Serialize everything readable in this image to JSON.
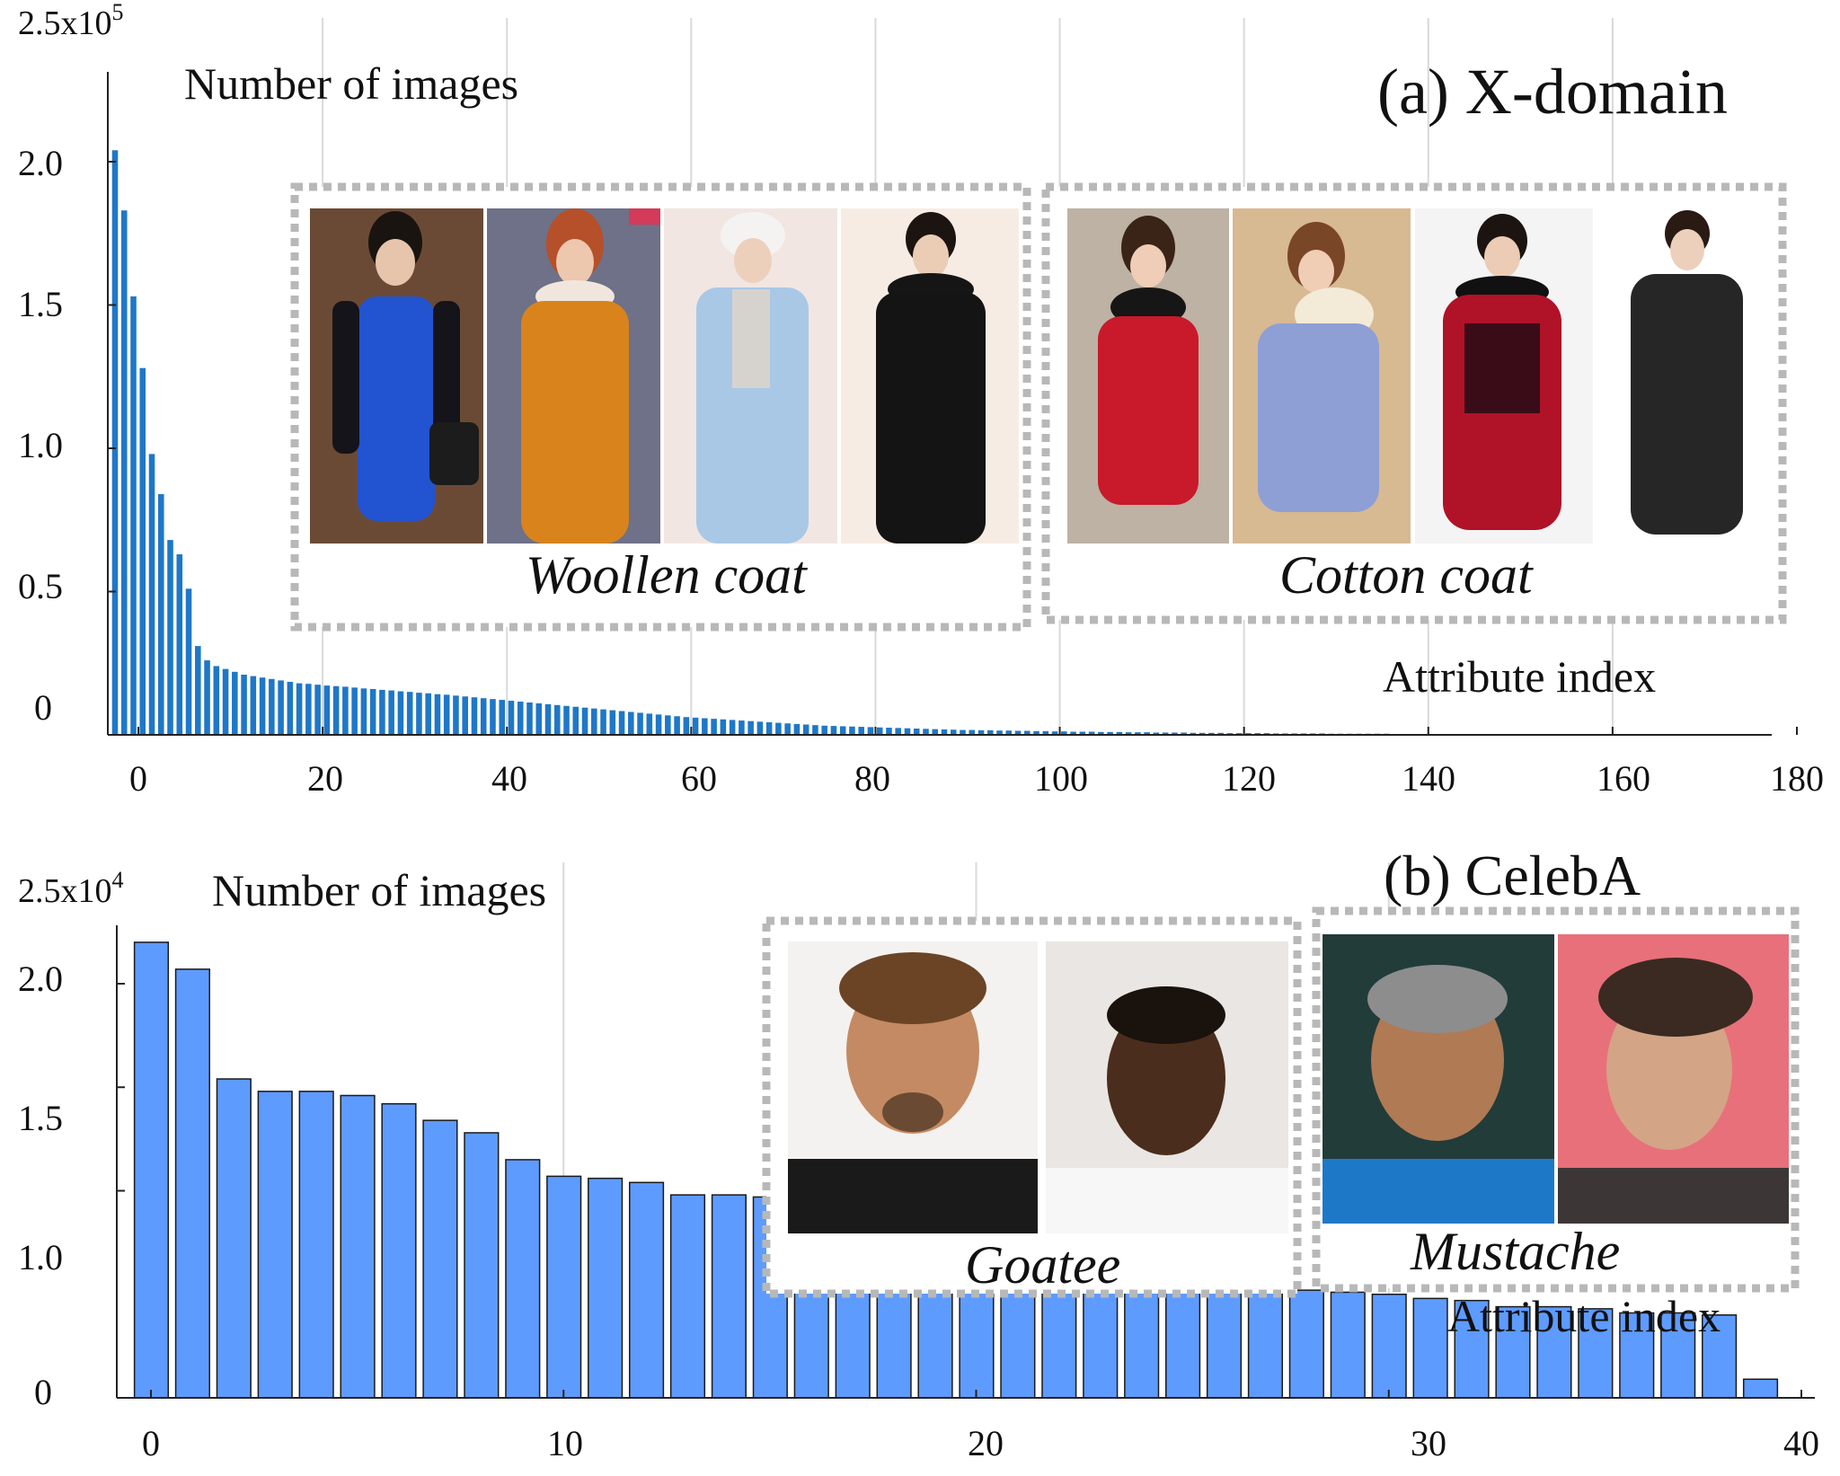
{
  "panels": [
    {
      "panel_title": "(a) X-domain",
      "y_axis_title": "Number of images",
      "x_axis_title": "Attribute index",
      "y_scale_prefix": "2.5x10",
      "y_scale_exp": "5",
      "y_tick_labels": [
        "2.0",
        "1.5",
        "1.0",
        "0.5",
        "0"
      ],
      "x_tick_labels": [
        "0",
        "20",
        "40",
        "60",
        "80",
        "100",
        "120",
        "140",
        "160",
        "180"
      ],
      "groups": [
        {
          "label": "Woollen coat",
          "thumbnails": [
            "blue-dress-photo",
            "orange-coat-photo",
            "light-blue-coat-photo",
            "black-coat-photo"
          ]
        },
        {
          "label": "Cotton coat",
          "thumbnails": [
            "red-padded-coat-photo",
            "lavender-coat-photo",
            "red-black-coat-photo",
            "black-padded-coat-photo"
          ]
        }
      ]
    },
    {
      "panel_title": "(b) CelebA",
      "y_axis_title": "Number of images",
      "x_axis_title": "Attribute index",
      "y_scale_prefix": "2.5x10",
      "y_scale_exp": "4",
      "y_tick_labels": [
        "2.0",
        "1.5",
        "1.0",
        "0"
      ],
      "x_tick_labels": [
        "0",
        "10",
        "20",
        "30",
        "40"
      ],
      "groups": [
        {
          "label": "Goatee",
          "thumbnails": [
            "goatee-face-photo-1",
            "goatee-face-photo-2"
          ]
        },
        {
          "label": "Mustache",
          "thumbnails": [
            "mustache-face-photo-1",
            "mustache-face-photo-2"
          ]
        }
      ]
    }
  ],
  "colors": {
    "bar_a": "#1f77c8",
    "bar_b": "#5e9bff",
    "bar_stroke_b": "#1a1a1a",
    "axis": "#222222",
    "grid": "#d9d9d9",
    "dash_frame": "#b8b8b8"
  },
  "chart_data": [
    {
      "type": "bar",
      "title": "(a) X-domain",
      "xlabel": "Attribute index",
      "ylabel": "Number of images",
      "unit_multiplier": 100000,
      "xlim": [
        -3,
        180
      ],
      "ylim": [
        0,
        2.5
      ],
      "grid": true,
      "x_ticks": [
        0,
        20,
        40,
        60,
        80,
        100,
        120,
        140,
        160,
        180
      ],
      "y_ticks": [
        0,
        0.5,
        1.0,
        1.5,
        2.0
      ],
      "values": [
        2.04,
        1.83,
        1.53,
        1.28,
        0.98,
        0.84,
        0.68,
        0.63,
        0.51,
        0.31,
        0.26,
        0.24,
        0.23,
        0.22,
        0.21,
        0.205,
        0.2,
        0.195,
        0.19,
        0.185,
        0.18,
        0.178,
        0.175,
        0.172,
        0.17,
        0.168,
        0.165,
        0.162,
        0.16,
        0.157,
        0.155,
        0.152,
        0.15,
        0.147,
        0.145,
        0.142,
        0.14,
        0.137,
        0.134,
        0.131,
        0.128,
        0.125,
        0.122,
        0.119,
        0.116,
        0.113,
        0.11,
        0.107,
        0.104,
        0.101,
        0.098,
        0.095,
        0.092,
        0.089,
        0.086,
        0.083,
        0.08,
        0.077,
        0.074,
        0.071,
        0.068,
        0.065,
        0.062,
        0.06,
        0.058,
        0.056,
        0.054,
        0.052,
        0.05,
        0.048,
        0.046,
        0.044,
        0.042,
        0.04,
        0.038,
        0.036,
        0.034,
        0.032,
        0.031,
        0.03,
        0.029,
        0.028,
        0.027,
        0.026,
        0.025,
        0.024,
        0.023,
        0.022,
        0.021,
        0.02,
        0.019,
        0.018,
        0.017,
        0.017,
        0.016,
        0.016,
        0.015,
        0.015,
        0.014,
        0.014,
        0.013,
        0.013,
        0.012,
        0.012,
        0.011,
        0.011,
        0.011,
        0.01,
        0.01,
        0.01,
        0.009,
        0.009,
        0.009,
        0.008,
        0.008,
        0.008,
        0.008,
        0.007,
        0.007,
        0.007,
        0.007,
        0.006,
        0.006,
        0.006,
        0.006,
        0.006,
        0.005,
        0.005,
        0.005,
        0.005,
        0.005,
        0.005,
        0.004,
        0.004,
        0.004,
        0.004,
        0.004,
        0.004,
        0.004,
        0.003,
        0.003,
        0.003,
        0.003,
        0.003,
        0.003,
        0.003,
        0.003,
        0.003,
        0.002,
        0.002,
        0.002,
        0.002,
        0.002,
        0.002,
        0.002,
        0.002,
        0.002,
        0.002,
        0.002,
        0.002,
        0.001,
        0.001,
        0.001,
        0.001,
        0.001,
        0.001,
        0.001,
        0.001,
        0.001,
        0.001,
        0.001,
        0.001,
        0.001,
        0.001,
        0.001,
        0.001,
        0.001,
        0.001,
        0.001
      ]
    },
    {
      "type": "bar",
      "title": "(b) CelebA",
      "xlabel": "Attribute index",
      "ylabel": "Number of images",
      "unit_multiplier": 10000,
      "xlim": [
        0,
        40
      ],
      "ylim": [
        0,
        2.2
      ],
      "grid": true,
      "x_ticks": [
        0,
        10,
        20,
        30,
        40
      ],
      "y_ticks": [
        0,
        1.0,
        1.5,
        2.0
      ],
      "values": [
        2.2,
        2.07,
        1.54,
        1.48,
        1.48,
        1.46,
        1.42,
        1.34,
        1.28,
        1.15,
        1.07,
        1.06,
        1.04,
        0.98,
        0.98,
        0.97,
        0.92,
        0.91,
        0.91,
        0.89,
        0.81,
        0.8,
        0.79,
        0.73,
        0.7,
        0.69,
        0.56,
        0.53,
        0.52,
        0.51,
        0.5,
        0.48,
        0.47,
        0.44,
        0.44,
        0.43,
        0.41,
        0.41,
        0.4,
        0.09
      ]
    }
  ]
}
